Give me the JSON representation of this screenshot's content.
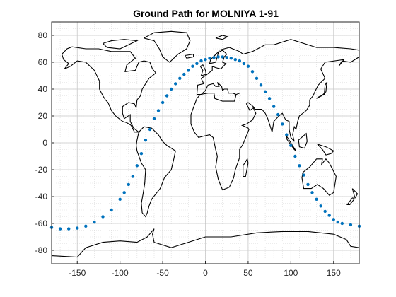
{
  "chart_data": {
    "type": "scatter",
    "title": "Ground Path for MOLNIYA 1-91",
    "xlabel": "",
    "ylabel": "",
    "xlim": [
      -180,
      180
    ],
    "ylim": [
      -90,
      90
    ],
    "xticks": [
      -150,
      -100,
      -50,
      0,
      50,
      100,
      150
    ],
    "yticks": [
      -80,
      -60,
      -40,
      -20,
      0,
      20,
      40,
      60,
      80
    ],
    "xtick_labels": [
      "-150",
      "-100",
      "-50",
      "0",
      "50",
      "100",
      "150"
    ],
    "ytick_labels": [
      "-80",
      "-60",
      "-40",
      "-20",
      "0",
      "20",
      "40",
      "60",
      "80"
    ],
    "grid": true,
    "minor_grid": true,
    "series": [
      {
        "color": "#0072BD",
        "marker": "dot",
        "x": [
          -180,
          -170,
          -160,
          -150,
          -140,
          -130,
          -120,
          -110,
          -100,
          -95,
          -90,
          -85,
          -80,
          -75,
          -70,
          -65,
          -60,
          -55,
          -50,
          -45,
          -40,
          -35,
          -30,
          -25,
          -20,
          -15,
          -10,
          -5,
          0,
          5,
          10,
          15,
          20,
          25,
          30,
          35,
          40,
          45,
          50,
          55,
          60,
          65,
          70,
          75,
          80,
          85,
          90,
          95,
          100,
          105,
          110,
          115,
          120,
          125,
          130,
          135,
          140,
          145,
          150,
          155,
          160,
          170,
          180
        ],
        "y": [
          -63,
          -64,
          -64,
          -63.5,
          -62,
          -59,
          -55,
          -50,
          -42,
          -37,
          -31,
          -25,
          -17,
          -8,
          2,
          10,
          18,
          24,
          30,
          35,
          40,
          44,
          48,
          51,
          54,
          57,
          59,
          61,
          62,
          63,
          63.5,
          64,
          64,
          63.5,
          63,
          62,
          61,
          59,
          57,
          53,
          48,
          43,
          38,
          33,
          27,
          21,
          14,
          6,
          -2,
          -10,
          -17,
          -24,
          -31,
          -37,
          -42,
          -47,
          -51,
          -54,
          -57,
          -59,
          -60,
          -61,
          -62
        ]
      }
    ],
    "background_map": "world coastlines",
    "map_color": "#000000"
  }
}
